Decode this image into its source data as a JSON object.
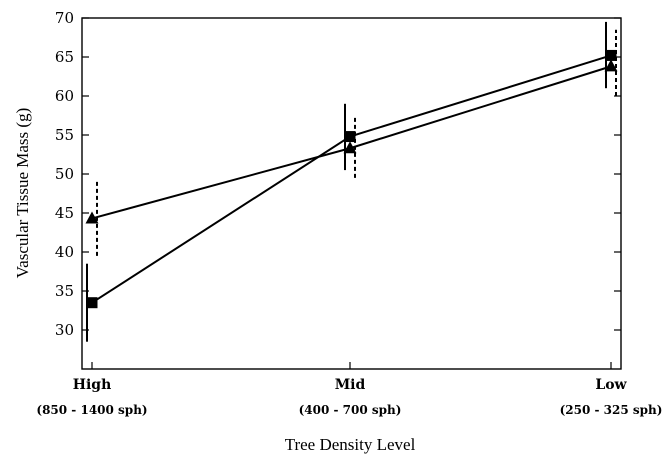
{
  "chart_data": {
    "type": "line",
    "title": "",
    "xlabel": "Tree Density Level",
    "ylabel": "Vascular Tissue Mass (g)",
    "ylim": [
      25,
      70
    ],
    "yticks": [
      30,
      35,
      40,
      45,
      50,
      55,
      60,
      65,
      70
    ],
    "categories": [
      {
        "label": "High",
        "sublabel": "(850 - 1400 sph)"
      },
      {
        "label": "Mid",
        "sublabel": "(400 - 700 sph)"
      },
      {
        "label": "Low",
        "sublabel": "(250 - 325 sph)"
      }
    ],
    "grid": false,
    "series": [
      {
        "marker": "triangle",
        "error_style": "dashed",
        "values": [
          44.3,
          53.3,
          63.8
        ],
        "error_low": [
          39.5,
          49.5,
          60.0
        ],
        "error_high": [
          49.0,
          57.5,
          68.5
        ]
      },
      {
        "marker": "square",
        "error_style": "solid",
        "values": [
          33.5,
          54.8,
          65.2
        ],
        "error_low": [
          28.5,
          50.5,
          61.0
        ],
        "error_high": [
          38.5,
          59.0,
          69.5
        ]
      }
    ]
  }
}
